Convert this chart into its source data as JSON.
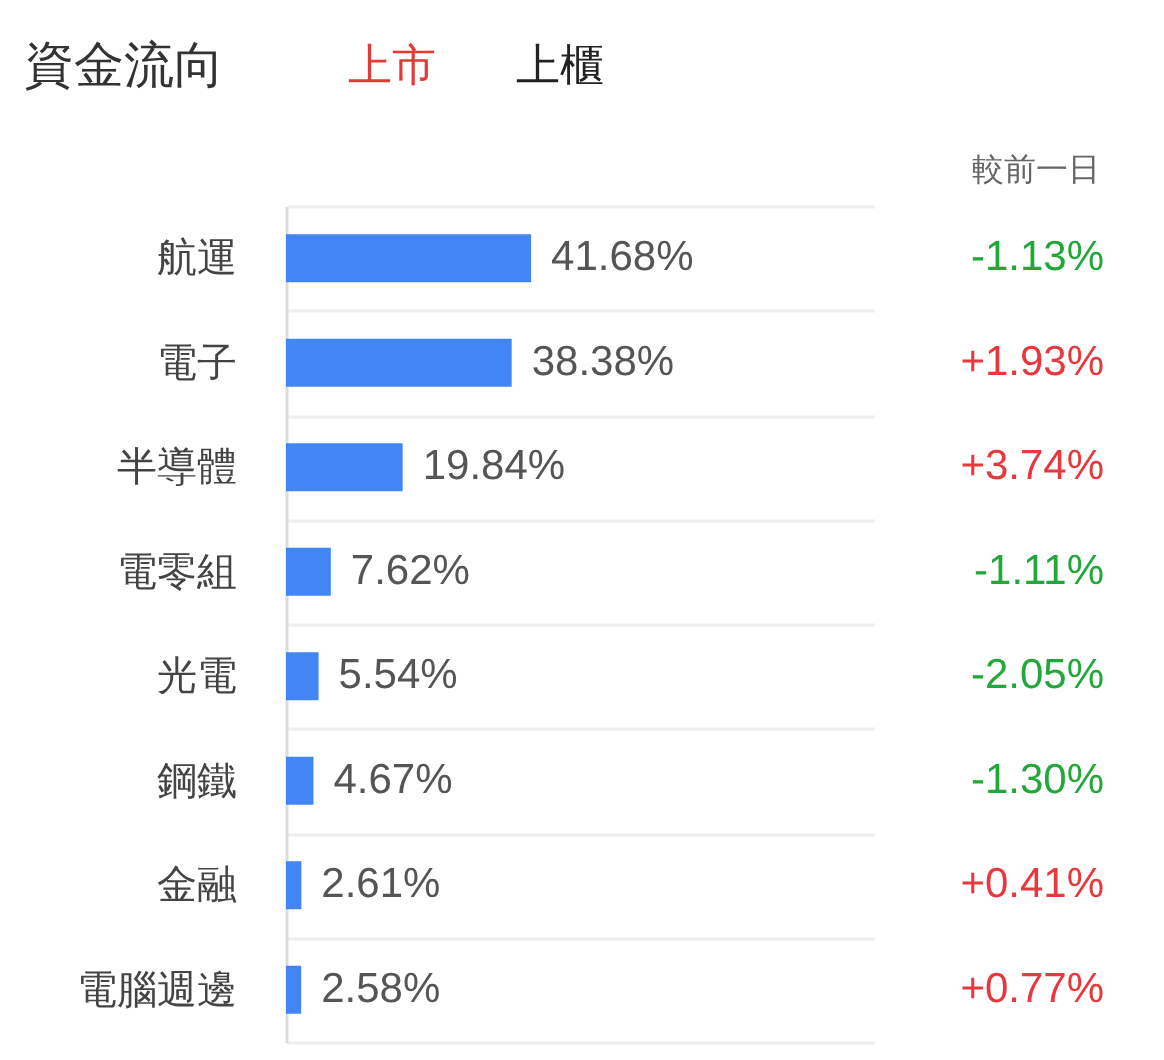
{
  "chart_data": [
    {
      "type": "bar",
      "orientation": "horizontal",
      "title": "資金流向",
      "annotations": [
        "上市",
        "上櫃"
      ],
      "categories": [
        "航運",
        "電子",
        "半導體",
        "電零組",
        "光電",
        "鋼鐵",
        "金融",
        "電腦週邊"
      ],
      "values": [
        41.68,
        38.38,
        19.84,
        7.62,
        5.54,
        4.67,
        2.61,
        2.58
      ],
      "value_labels": [
        "41.68%",
        "38.38%",
        "19.84%",
        "7.62%",
        "5.54%",
        "4.67%",
        "2.61%",
        "2.58%"
      ],
      "color": "#4285f4",
      "xlim": [
        0,
        100
      ],
      "tick_labels": "y",
      "grid": "y"
    },
    {
      "type": "other",
      "title": "較前一日",
      "value_labels": [
        "-1.13%",
        "+1.93%",
        "+3.74%",
        "-1.11%",
        "-2.05%",
        "-1.30%",
        "+0.41%",
        "+0.77%"
      ],
      "colors": [
        "#22a83a",
        "#e8383d",
        "#e8383d",
        "#22a83a",
        "#22a83a",
        "#22a83a",
        "#e8383d",
        "#e8383d"
      ]
    }
  ]
}
